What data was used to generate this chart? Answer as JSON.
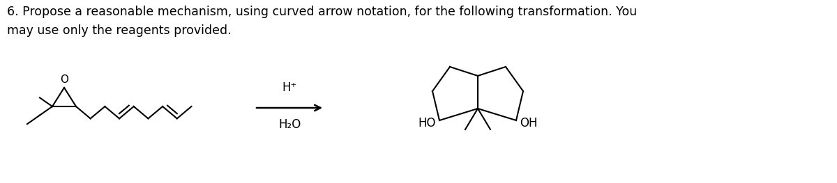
{
  "title_line1": "6. Propose a reasonable mechanism, using curved arrow notation, for the following transformation. You",
  "title_line2": "may use only the reagents provided.",
  "reagent1": "H⁺",
  "reagent2": "H₂O",
  "ho_label": "HO",
  "oh_label": "OH",
  "o_label": "O",
  "bg_color": "#ffffff",
  "text_color": "#000000",
  "line_color": "#000000",
  "title_fontsize": 12.5,
  "label_fontsize": 12
}
